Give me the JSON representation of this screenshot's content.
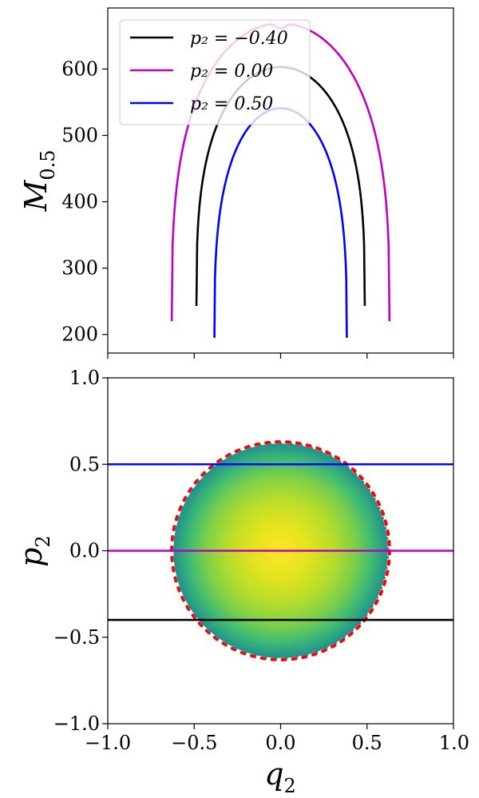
{
  "chart_data": [
    {
      "type": "line",
      "ylabel": "M",
      "ylabel_sub": "0.5",
      "xlim": [
        -1.0,
        1.0
      ],
      "ylim": [
        172,
        692
      ],
      "yticks": [
        200,
        300,
        400,
        500,
        600
      ],
      "xticks": [
        -0.5,
        0.0,
        0.5
      ],
      "x_ticklabels_shown": false,
      "legend_placement": "upper-left",
      "series": [
        {
          "name": "p2 = -0.40",
          "legend_label": "p₂ = −0.40",
          "color": "#000000",
          "qmax": 0.487,
          "ymin": 243,
          "ymax": 603
        },
        {
          "name": "p2 = 0.00",
          "legend_label": "p₂ = 0.00",
          "color": "#bf00bf",
          "qmax": 0.63,
          "ymin": 220,
          "ymax": 669,
          "top_dip": 8
        },
        {
          "name": "p2 = 0.50",
          "legend_label": "p₂ = 0.50",
          "color": "#0000ff",
          "qmax": 0.383,
          "ymin": 195,
          "ymax": 541
        }
      ]
    },
    {
      "type": "heatmap",
      "xlabel": "q",
      "xlabel_sub": "2",
      "ylabel": "p",
      "ylabel_sub": "2",
      "xlim": [
        -1.0,
        1.0
      ],
      "ylim": [
        -1.0,
        1.0
      ],
      "xticks": [
        -1.0,
        -0.5,
        0.0,
        0.5,
        1.0
      ],
      "yticks": [
        -1.0,
        -0.5,
        0.0,
        0.5,
        1.0
      ],
      "xticklabels": [
        "−1.0",
        "−0.5",
        "0.0",
        "0.5",
        "1.0"
      ],
      "yticklabels": [
        "−1.0",
        "−0.5",
        "0.0",
        "0.5",
        "1.0"
      ],
      "disk": {
        "center": [
          0.0,
          0.0
        ],
        "radius": 0.62,
        "colormap": "viridis"
      },
      "boundary_circle": {
        "radius": 0.63,
        "color": "#ff0000",
        "style": "dotted"
      },
      "hlines": [
        {
          "y": 0.5,
          "color": "#0000ff"
        },
        {
          "y": 0.0,
          "color": "#bf00bf"
        },
        {
          "y": -0.4,
          "color": "#000000"
        }
      ]
    }
  ]
}
